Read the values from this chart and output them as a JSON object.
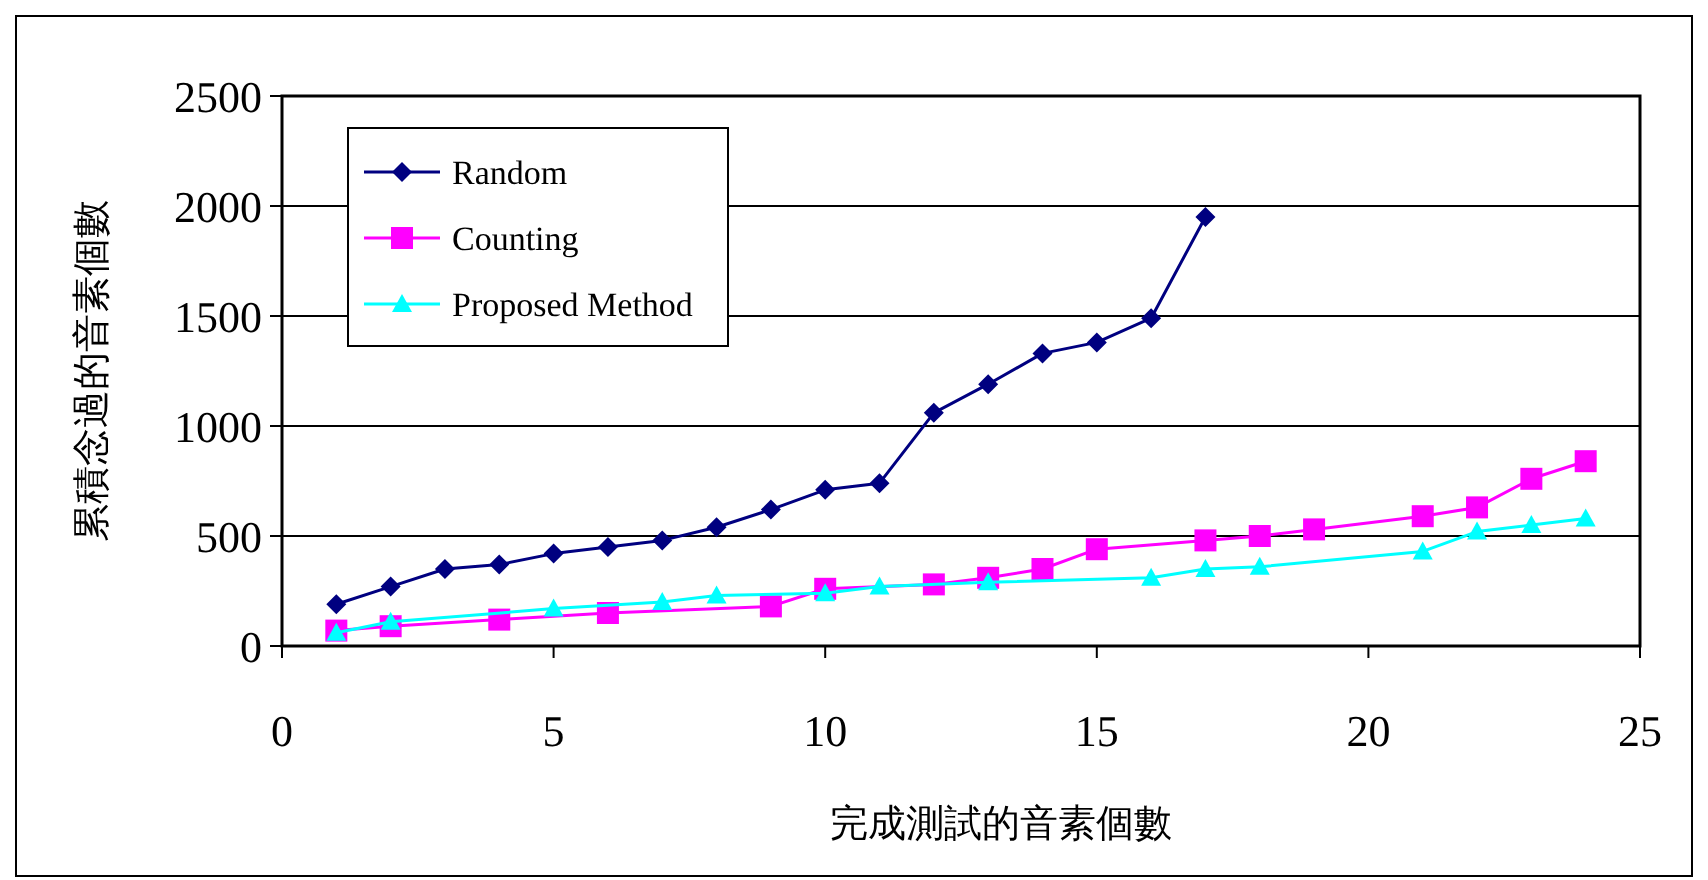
{
  "chart_data": {
    "type": "line",
    "xlabel": "完成測試的音素個數",
    "ylabel": "累積念過的音素個數",
    "xlim": [
      0,
      25
    ],
    "xticks": [
      0,
      5,
      10,
      15,
      20,
      25
    ],
    "ylim": [
      0,
      2500
    ],
    "yticks": [
      0,
      500,
      1000,
      1500,
      2000,
      2500
    ],
    "grid": "y",
    "legend": "top left",
    "series": [
      {
        "name": "Random",
        "color": "#000080",
        "marker": "diamond",
        "x": [
          1,
          2,
          3,
          4,
          5,
          6,
          7,
          8,
          9,
          10,
          11,
          12,
          13,
          14,
          15,
          16,
          17
        ],
        "values": [
          190,
          270,
          350,
          370,
          420,
          450,
          480,
          540,
          620,
          710,
          740,
          1060,
          1190,
          1330,
          1380,
          1490,
          1950
        ]
      },
      {
        "name": "Counting",
        "color": "#ff00ff",
        "marker": "square",
        "x": [
          1,
          2,
          4,
          6,
          9,
          10,
          12,
          13,
          14,
          15,
          17,
          18,
          19,
          21,
          22,
          23,
          24
        ],
        "values": [
          70,
          90,
          120,
          150,
          180,
          260,
          280,
          310,
          350,
          440,
          480,
          500,
          530,
          590,
          630,
          760,
          840
        ]
      },
      {
        "name": "Proposed Method",
        "color": "#00ffff",
        "marker": "triangle",
        "x": [
          1,
          2,
          5,
          7,
          8,
          10,
          11,
          13,
          16,
          17,
          18,
          21,
          22,
          23,
          24
        ],
        "values": [
          60,
          110,
          170,
          200,
          230,
          240,
          270,
          290,
          310,
          350,
          360,
          430,
          520,
          550,
          580
        ]
      }
    ]
  }
}
